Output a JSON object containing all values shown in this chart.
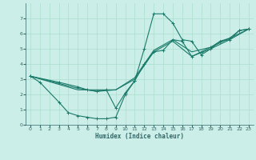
{
  "xlabel": "Humidex (Indice chaleur)",
  "background_color": "#cceee8",
  "grid_color": "#aaddcc",
  "line_color": "#1a7a6a",
  "xlim": [
    -0.5,
    23.5
  ],
  "ylim": [
    0,
    8
  ],
  "xticks": [
    0,
    1,
    2,
    3,
    4,
    5,
    6,
    7,
    8,
    9,
    10,
    11,
    12,
    13,
    14,
    15,
    16,
    17,
    18,
    19,
    20,
    21,
    22,
    23
  ],
  "yticks": [
    0,
    1,
    2,
    3,
    4,
    5,
    6,
    7
  ],
  "curve1_x": [
    0,
    1,
    3,
    4,
    5,
    6,
    7,
    8,
    9,
    10,
    11,
    12,
    13,
    14,
    15,
    16,
    17,
    18,
    19,
    20,
    21,
    22,
    23
  ],
  "curve1_y": [
    3.2,
    2.8,
    1.5,
    0.8,
    0.6,
    0.5,
    0.4,
    0.4,
    0.5,
    2.0,
    2.9,
    5.0,
    7.3,
    7.3,
    6.7,
    5.6,
    5.5,
    4.6,
    5.0,
    5.5,
    5.6,
    6.2,
    6.3
  ],
  "curve2_x": [
    0,
    3,
    5,
    6,
    7,
    8,
    9,
    10,
    11,
    12,
    13,
    14,
    15,
    16,
    17,
    18,
    19,
    20,
    21,
    22,
    23
  ],
  "curve2_y": [
    3.2,
    2.8,
    2.5,
    2.3,
    2.2,
    2.3,
    1.1,
    2.1,
    2.9,
    4.0,
    4.8,
    4.9,
    5.6,
    5.5,
    4.5,
    4.8,
    5.1,
    5.5,
    5.7,
    6.2,
    6.3
  ],
  "curve3_x": [
    0,
    5,
    7,
    9,
    11,
    13,
    15,
    17,
    19,
    21,
    23
  ],
  "curve3_y": [
    3.2,
    2.4,
    2.2,
    2.3,
    3.1,
    4.9,
    5.6,
    4.8,
    5.1,
    5.7,
    6.3
  ],
  "curve4_x": [
    0,
    5,
    9,
    11,
    13,
    15,
    17,
    19,
    21,
    23
  ],
  "curve4_y": [
    3.2,
    2.3,
    2.3,
    3.0,
    4.8,
    5.5,
    4.5,
    5.0,
    5.6,
    6.3
  ]
}
